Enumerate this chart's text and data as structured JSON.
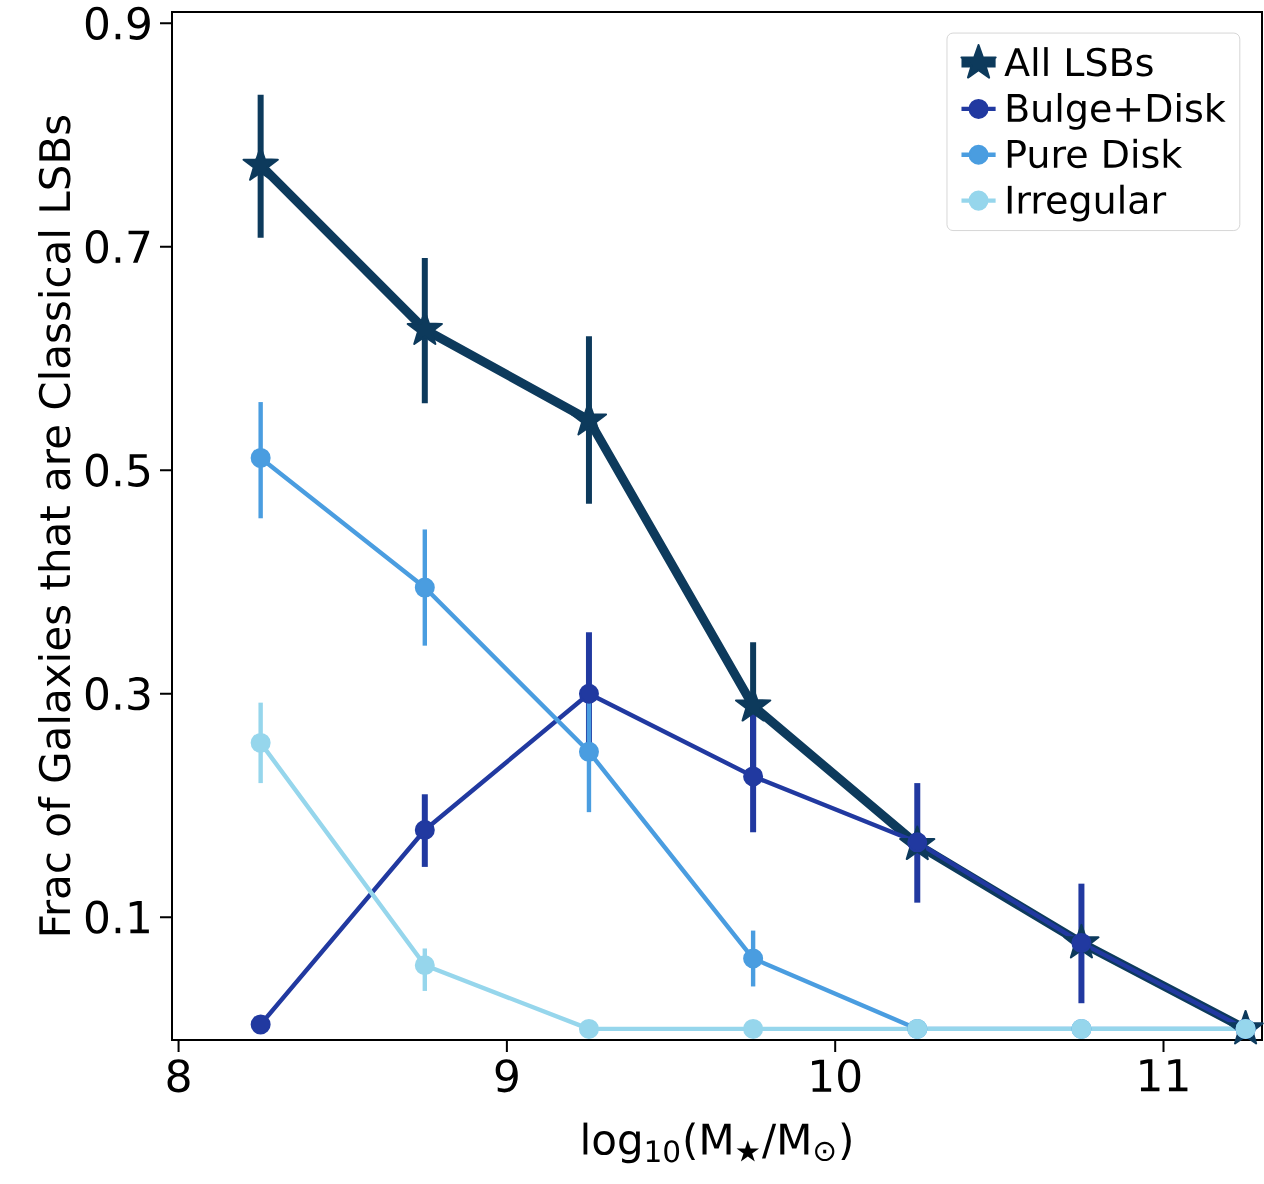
{
  "chart_data": {
    "type": "line",
    "xlabel": "log$_{10}$(M$_{★}$/M$_{⊙}$)",
    "ylabel": "Frac of Galaxies that are Classical LSBs",
    "x": [
      8.25,
      8.75,
      9.25,
      9.75,
      10.25,
      10.75,
      11.25
    ],
    "series": [
      {
        "name": "All LSBs",
        "color": "#0d3a5c",
        "marker": "star",
        "values": [
          0.773,
          0.626,
          0.545,
          0.289,
          0.165,
          0.077,
          0.0
        ],
        "errors": [
          [
            0.708,
            0.836
          ],
          [
            0.56,
            0.69
          ],
          [
            0.47,
            0.62
          ],
          [
            0.231,
            0.346
          ],
          null,
          null,
          null
        ]
      },
      {
        "name": "Bulge+Disk",
        "color": "#2139a0",
        "marker": "circle",
        "values": [
          0.004,
          0.178,
          0.3,
          0.226,
          0.167,
          0.077,
          0.0
        ],
        "errors": [
          null,
          [
            0.145,
            0.21
          ],
          [
            0.244,
            0.355
          ],
          [
            0.176,
            0.283
          ],
          [
            0.113,
            0.22
          ],
          [
            0.023,
            0.13
          ],
          null
        ]
      },
      {
        "name": "Pure Disk",
        "color": "#4a9de0",
        "marker": "circle",
        "values": [
          0.511,
          0.395,
          0.248,
          0.063,
          0.0,
          0.0,
          0.0
        ],
        "errors": [
          [
            0.457,
            0.561
          ],
          [
            0.343,
            0.447
          ],
          [
            0.194,
            0.301
          ],
          [
            0.038,
            0.088
          ],
          null,
          null,
          null
        ]
      },
      {
        "name": "Irregular",
        "color": "#96d6ec",
        "marker": "circle",
        "values": [
          0.256,
          0.057,
          0.0,
          0.0,
          0.0,
          0.0,
          0.0
        ],
        "errors": [
          [
            0.22,
            0.292
          ],
          [
            0.034,
            0.072
          ],
          null,
          null,
          null,
          null,
          null
        ]
      }
    ],
    "xlim": [
      7.98,
      11.3
    ],
    "ylim": [
      -0.01,
      0.91
    ],
    "xticks": [
      8,
      9,
      10,
      11
    ],
    "yticks": [
      0.1,
      0.3,
      0.5,
      0.7,
      0.9
    ],
    "legend": "top right",
    "grid": false,
    "line_style": "solid"
  }
}
